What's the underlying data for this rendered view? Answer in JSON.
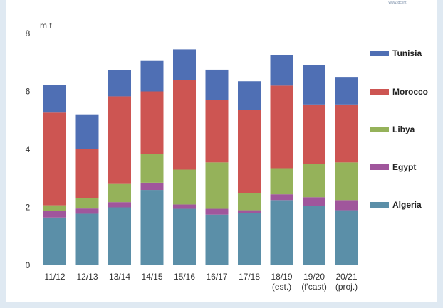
{
  "source_note": "www.igc.int",
  "chart_data": {
    "type": "bar",
    "stacked": true,
    "unit": "m t",
    "ylim": [
      0,
      8
    ],
    "yticks": [
      0,
      2,
      4,
      6,
      8
    ],
    "grid": false,
    "legend_position": "right",
    "categories": [
      [
        "11/12"
      ],
      [
        "12/13"
      ],
      [
        "13/14"
      ],
      [
        "14/15"
      ],
      [
        "15/16"
      ],
      [
        "16/17"
      ],
      [
        "17/18"
      ],
      [
        "18/19",
        "(est.)"
      ],
      [
        "19/20",
        "(f'cast)"
      ],
      [
        "20/21",
        "(proj.)"
      ]
    ],
    "series": [
      {
        "name": "Algeria",
        "color": "#5b8fa8",
        "values": [
          1.65,
          1.78,
          2.0,
          2.6,
          1.95,
          1.75,
          1.8,
          2.25,
          2.05,
          1.9
        ]
      },
      {
        "name": "Egypt",
        "color": "#a0569c",
        "values": [
          0.22,
          0.18,
          0.18,
          0.25,
          0.15,
          0.2,
          0.1,
          0.2,
          0.3,
          0.35
        ]
      },
      {
        "name": "Libya",
        "color": "#95b25a",
        "values": [
          0.2,
          0.35,
          0.65,
          1.0,
          1.2,
          1.6,
          0.6,
          0.9,
          1.15,
          1.3
        ]
      },
      {
        "name": "Morocco",
        "color": "#cd5552",
        "values": [
          3.2,
          1.7,
          3.0,
          2.15,
          3.1,
          2.15,
          2.85,
          2.85,
          2.05,
          2.0
        ]
      },
      {
        "name": "Tunisia",
        "color": "#4f6fb4",
        "values": [
          0.95,
          1.2,
          0.9,
          1.05,
          1.05,
          1.05,
          1.0,
          1.05,
          1.35,
          0.95
        ]
      }
    ],
    "legend_order": [
      "Tunisia",
      "Morocco",
      "Libya",
      "Egypt",
      "Algeria"
    ]
  }
}
